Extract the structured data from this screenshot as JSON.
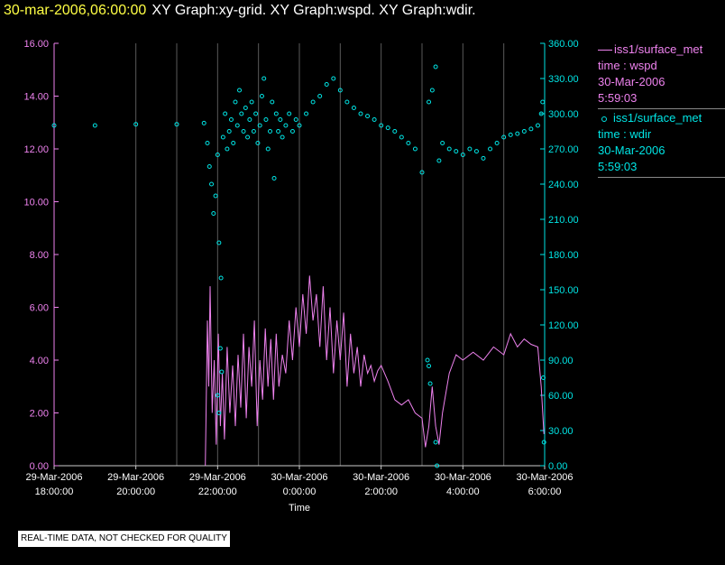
{
  "header": {
    "date": "30-mar-2006,06:00:00",
    "graphs": "XY Graph:xy-grid.  XY Graph:wspd.  XY Graph:wdir."
  },
  "legend": [
    {
      "name": "iss1/surface_met",
      "var": "time : wspd",
      "date": "30-Mar-2006",
      "time": "5:59:03",
      "color": "#ee82ee"
    },
    {
      "name": "iss1/surface_met",
      "var": "time : wdir",
      "date": "30-Mar-2006",
      "time": "5:59:03",
      "color": "#00e5e5"
    }
  ],
  "notice": "REAL-TIME DATA, NOT CHECKED FOR QUALITY",
  "chart_data": {
    "type": "line",
    "title": "",
    "xlabel": "Time",
    "x_range": [
      "2006-03-29 18:00",
      "2006-03-30 06:00"
    ],
    "x_ticks": [
      {
        "t": "2006-03-29 18:00",
        "label": [
          "29-Mar-2006",
          "18:00:00"
        ]
      },
      {
        "t": "2006-03-29 20:00",
        "label": [
          "29-Mar-2006",
          "20:00:00"
        ]
      },
      {
        "t": "2006-03-29 22:00",
        "label": [
          "29-Mar-2006",
          "22:00:00"
        ]
      },
      {
        "t": "2006-03-30 00:00",
        "label": [
          "30-Mar-2006",
          "0:00:00"
        ]
      },
      {
        "t": "2006-03-30 02:00",
        "label": [
          "30-Mar-2006",
          "2:00:00"
        ]
      },
      {
        "t": "2006-03-30 04:00",
        "label": [
          "30-Mar-2006",
          "4:00:00"
        ]
      },
      {
        "t": "2006-03-30 06:00",
        "label": [
          "30-Mar-2006",
          "6:00:00"
        ]
      }
    ],
    "minor_gridlines": [
      "2006-03-29 21:00",
      "2006-03-29 23:00",
      "2006-03-30 01:00",
      "2006-03-30 03:00",
      "2006-03-30 05:00"
    ],
    "y_left": {
      "min": 0,
      "max": 16,
      "ticks": [
        "0.00",
        "2.00",
        "4.00",
        "6.00",
        "8.00",
        "10.00",
        "12.00",
        "14.00",
        "16.00"
      ],
      "color": "#ee82ee"
    },
    "y_right": {
      "min": 0,
      "max": 360,
      "ticks": [
        "0.00",
        "30.00",
        "60.00",
        "90.00",
        "120.00",
        "150.00",
        "180.00",
        "210.00",
        "240.00",
        "270.00",
        "300.00",
        "330.00",
        "360.00"
      ],
      "color": "#00e5e5"
    },
    "series": [
      {
        "name": "wspd",
        "axis": "left",
        "style": "line",
        "color": "#ee82ee",
        "points": [
          [
            "2006-03-29 21:42",
            0.0
          ],
          [
            "2006-03-29 21:45",
            5.5
          ],
          [
            "2006-03-29 21:47",
            3.0
          ],
          [
            "2006-03-29 21:49",
            6.8
          ],
          [
            "2006-03-29 21:52",
            2.0
          ],
          [
            "2006-03-29 21:55",
            4.0
          ],
          [
            "2006-03-29 21:58",
            0.8
          ],
          [
            "2006-03-29 22:01",
            5.0
          ],
          [
            "2006-03-29 22:04",
            1.5
          ],
          [
            "2006-03-29 22:07",
            3.5
          ],
          [
            "2006-03-29 22:10",
            1.0
          ],
          [
            "2006-03-29 22:14",
            4.5
          ],
          [
            "2006-03-29 22:18",
            2.0
          ],
          [
            "2006-03-29 22:22",
            3.8
          ],
          [
            "2006-03-29 22:26",
            1.5
          ],
          [
            "2006-03-29 22:30",
            4.2
          ],
          [
            "2006-03-29 22:34",
            2.2
          ],
          [
            "2006-03-29 22:38",
            5.0
          ],
          [
            "2006-03-29 22:42",
            1.8
          ],
          [
            "2006-03-29 22:46",
            4.5
          ],
          [
            "2006-03-29 22:50",
            3.0
          ],
          [
            "2006-03-29 22:54",
            5.5
          ],
          [
            "2006-03-29 22:58",
            1.5
          ],
          [
            "2006-03-29 23:02",
            4.0
          ],
          [
            "2006-03-29 23:06",
            2.5
          ],
          [
            "2006-03-29 23:10",
            5.2
          ],
          [
            "2006-03-29 23:14",
            3.0
          ],
          [
            "2006-03-29 23:18",
            4.8
          ],
          [
            "2006-03-29 23:22",
            2.5
          ],
          [
            "2006-03-29 23:26",
            5.0
          ],
          [
            "2006-03-29 23:30",
            3.0
          ],
          [
            "2006-03-29 23:35",
            4.2
          ],
          [
            "2006-03-29 23:40",
            3.5
          ],
          [
            "2006-03-29 23:45",
            5.5
          ],
          [
            "2006-03-29 23:50",
            4.0
          ],
          [
            "2006-03-29 23:55",
            6.0
          ],
          [
            "2006-03-30 00:00",
            4.5
          ],
          [
            "2006-03-30 00:05",
            6.5
          ],
          [
            "2006-03-30 00:10",
            5.0
          ],
          [
            "2006-03-30 00:15",
            7.2
          ],
          [
            "2006-03-30 00:20",
            5.5
          ],
          [
            "2006-03-30 00:25",
            6.5
          ],
          [
            "2006-03-30 00:30",
            4.5
          ],
          [
            "2006-03-30 00:35",
            6.8
          ],
          [
            "2006-03-30 00:40",
            4.0
          ],
          [
            "2006-03-30 00:45",
            6.0
          ],
          [
            "2006-03-30 00:50",
            3.5
          ],
          [
            "2006-03-30 00:55",
            5.5
          ],
          [
            "2006-03-30 01:00",
            4.0
          ],
          [
            "2006-03-30 01:05",
            5.8
          ],
          [
            "2006-03-30 01:10",
            3.0
          ],
          [
            "2006-03-30 01:15",
            5.0
          ],
          [
            "2006-03-30 01:20",
            3.5
          ],
          [
            "2006-03-30 01:25",
            4.5
          ],
          [
            "2006-03-30 01:30",
            3.0
          ],
          [
            "2006-03-30 01:35",
            4.2
          ],
          [
            "2006-03-30 01:40",
            3.5
          ],
          [
            "2006-03-30 01:45",
            3.8
          ],
          [
            "2006-03-30 01:50",
            3.2
          ],
          [
            "2006-03-30 01:55",
            3.6
          ],
          [
            "2006-03-30 02:00",
            3.8
          ],
          [
            "2006-03-30 02:10",
            3.2
          ],
          [
            "2006-03-30 02:20",
            2.5
          ],
          [
            "2006-03-30 02:30",
            2.3
          ],
          [
            "2006-03-30 02:40",
            2.5
          ],
          [
            "2006-03-30 02:50",
            2.0
          ],
          [
            "2006-03-30 03:00",
            1.8
          ],
          [
            "2006-03-30 03:05",
            0.7
          ],
          [
            "2006-03-30 03:10",
            1.5
          ],
          [
            "2006-03-30 03:15",
            3.0
          ],
          [
            "2006-03-30 03:20",
            1.5
          ],
          [
            "2006-03-30 03:25",
            0.8
          ],
          [
            "2006-03-30 03:30",
            2.0
          ],
          [
            "2006-03-30 03:40",
            3.5
          ],
          [
            "2006-03-30 03:50",
            4.2
          ],
          [
            "2006-03-30 04:00",
            4.0
          ],
          [
            "2006-03-30 04:15",
            4.3
          ],
          [
            "2006-03-30 04:30",
            4.0
          ],
          [
            "2006-03-30 04:45",
            4.5
          ],
          [
            "2006-03-30 05:00",
            4.2
          ],
          [
            "2006-03-30 05:10",
            5.0
          ],
          [
            "2006-03-30 05:20",
            4.5
          ],
          [
            "2006-03-30 05:30",
            4.8
          ],
          [
            "2006-03-30 05:40",
            4.6
          ],
          [
            "2006-03-30 05:50",
            4.5
          ],
          [
            "2006-03-30 05:55",
            3.0
          ],
          [
            "2006-03-30 05:59",
            1.2
          ]
        ]
      },
      {
        "name": "wdir",
        "axis": "right",
        "style": "scatter",
        "color": "#00e5e5",
        "points": [
          [
            "2006-03-29 18:00",
            290
          ],
          [
            "2006-03-29 19:00",
            290
          ],
          [
            "2006-03-29 20:00",
            291
          ],
          [
            "2006-03-29 21:00",
            291
          ],
          [
            "2006-03-29 21:40",
            292
          ],
          [
            "2006-03-29 21:45",
            275
          ],
          [
            "2006-03-29 21:48",
            255
          ],
          [
            "2006-03-29 21:51",
            240
          ],
          [
            "2006-03-29 21:54",
            215
          ],
          [
            "2006-03-29 21:57",
            230
          ],
          [
            "2006-03-29 22:00",
            265
          ],
          [
            "2006-03-29 22:02",
            190
          ],
          [
            "2006-03-29 22:05",
            160
          ],
          [
            "2006-03-29 22:08",
            280
          ],
          [
            "2006-03-29 22:11",
            300
          ],
          [
            "2006-03-29 22:14",
            270
          ],
          [
            "2006-03-29 22:17",
            285
          ],
          [
            "2006-03-29 22:20",
            295
          ],
          [
            "2006-03-29 22:23",
            275
          ],
          [
            "2006-03-29 22:26",
            310
          ],
          [
            "2006-03-29 22:29",
            290
          ],
          [
            "2006-03-29 22:32",
            320
          ],
          [
            "2006-03-29 22:35",
            300
          ],
          [
            "2006-03-29 22:38",
            285
          ],
          [
            "2006-03-29 22:41",
            305
          ],
          [
            "2006-03-29 22:44",
            280
          ],
          [
            "2006-03-29 22:47",
            295
          ],
          [
            "2006-03-29 22:50",
            310
          ],
          [
            "2006-03-29 22:53",
            285
          ],
          [
            "2006-03-29 22:56",
            300
          ],
          [
            "2006-03-29 22:59",
            275
          ],
          [
            "2006-03-29 23:02",
            290
          ],
          [
            "2006-03-29 23:05",
            315
          ],
          [
            "2006-03-29 23:08",
            330
          ],
          [
            "2006-03-29 23:11",
            295
          ],
          [
            "2006-03-29 23:14",
            270
          ],
          [
            "2006-03-29 23:17",
            285
          ],
          [
            "2006-03-29 23:20",
            310
          ],
          [
            "2006-03-29 23:23",
            245
          ],
          [
            "2006-03-29 23:26",
            300
          ],
          [
            "2006-03-29 23:29",
            285
          ],
          [
            "2006-03-29 23:32",
            295
          ],
          [
            "2006-03-29 23:35",
            280
          ],
          [
            "2006-03-29 23:40",
            290
          ],
          [
            "2006-03-29 23:45",
            300
          ],
          [
            "2006-03-29 23:50",
            285
          ],
          [
            "2006-03-29 23:55",
            295
          ],
          [
            "2006-03-30 00:00",
            290
          ],
          [
            "2006-03-30 00:10",
            300
          ],
          [
            "2006-03-30 00:20",
            310
          ],
          [
            "2006-03-30 00:30",
            315
          ],
          [
            "2006-03-30 00:40",
            325
          ],
          [
            "2006-03-30 00:50",
            330
          ],
          [
            "2006-03-30 01:00",
            320
          ],
          [
            "2006-03-30 01:10",
            310
          ],
          [
            "2006-03-30 01:20",
            305
          ],
          [
            "2006-03-30 01:30",
            300
          ],
          [
            "2006-03-30 01:40",
            298
          ],
          [
            "2006-03-30 01:50",
            295
          ],
          [
            "2006-03-30 02:00",
            290
          ],
          [
            "2006-03-30 02:10",
            288
          ],
          [
            "2006-03-30 02:20",
            285
          ],
          [
            "2006-03-30 02:30",
            280
          ],
          [
            "2006-03-30 02:40",
            275
          ],
          [
            "2006-03-30 02:50",
            270
          ],
          [
            "2006-03-30 03:00",
            250
          ],
          [
            "2006-03-30 03:10",
            310
          ],
          [
            "2006-03-30 03:15",
            320
          ],
          [
            "2006-03-30 03:20",
            340
          ],
          [
            "2006-03-30 03:25",
            260
          ],
          [
            "2006-03-30 03:30",
            275
          ],
          [
            "2006-03-30 03:40",
            270
          ],
          [
            "2006-03-30 03:50",
            268
          ],
          [
            "2006-03-30 04:00",
            265
          ],
          [
            "2006-03-30 04:10",
            270
          ],
          [
            "2006-03-30 04:20",
            268
          ],
          [
            "2006-03-30 04:30",
            262
          ],
          [
            "2006-03-30 04:40",
            270
          ],
          [
            "2006-03-30 04:50",
            275
          ],
          [
            "2006-03-30 05:00",
            280
          ],
          [
            "2006-03-30 05:10",
            282
          ],
          [
            "2006-03-30 05:20",
            283
          ],
          [
            "2006-03-30 05:30",
            285
          ],
          [
            "2006-03-30 05:40",
            287
          ],
          [
            "2006-03-30 05:50",
            290
          ],
          [
            "2006-03-30 05:55",
            300
          ],
          [
            "2006-03-30 05:57",
            310
          ],
          [
            "2006-03-30 03:08",
            90
          ],
          [
            "2006-03-30 03:10",
            85
          ],
          [
            "2006-03-30 03:12",
            70
          ],
          [
            "2006-03-30 03:20",
            20
          ],
          [
            "2006-03-30 03:22",
            0
          ],
          [
            "2006-03-30 05:58",
            75
          ],
          [
            "2006-03-30 05:59",
            20
          ],
          [
            "2006-03-29 22:00",
            60
          ],
          [
            "2006-03-29 22:02",
            45
          ],
          [
            "2006-03-29 22:04",
            100
          ],
          [
            "2006-03-29 22:06",
            80
          ]
        ]
      }
    ]
  }
}
